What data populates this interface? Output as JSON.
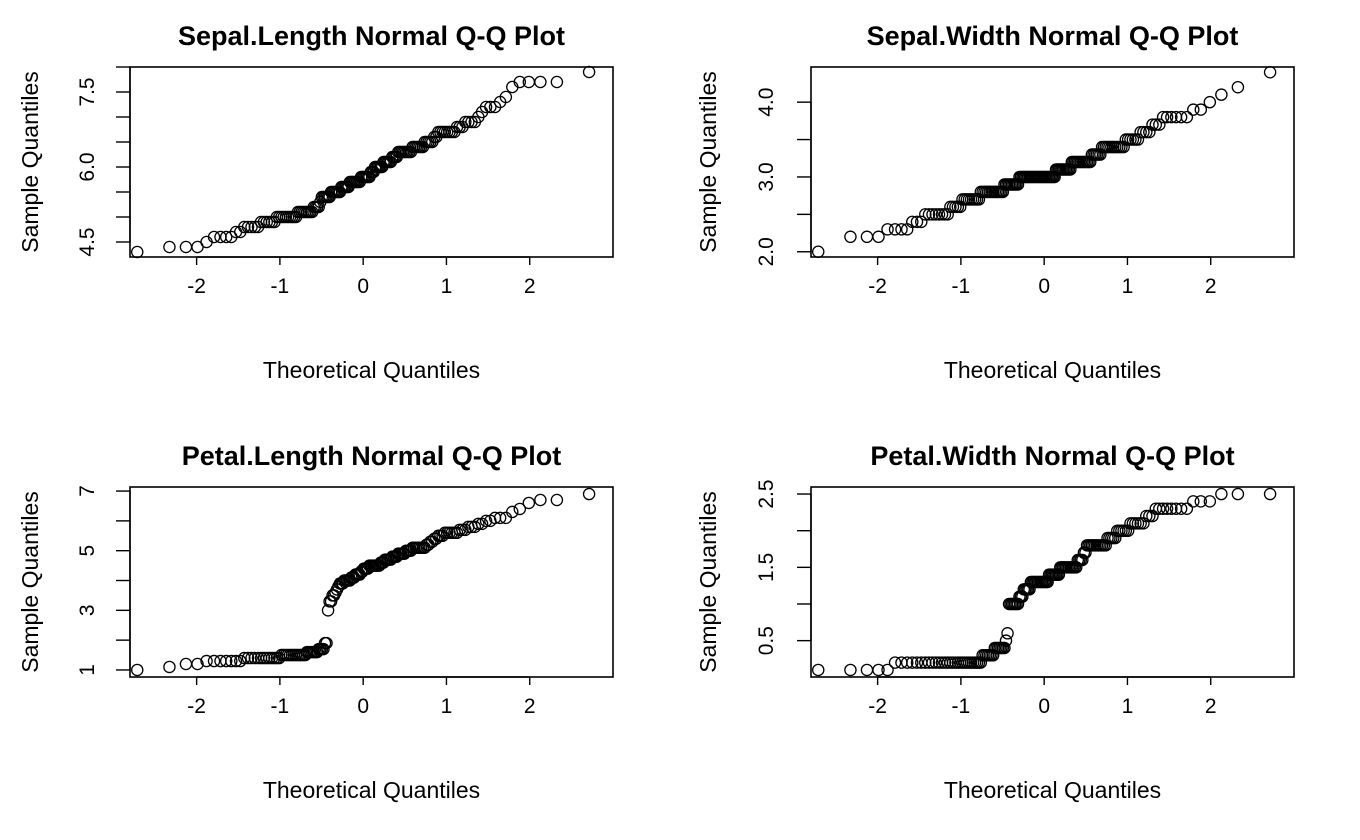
{
  "chart_data": [
    {
      "type": "scatter",
      "variable": "sepal_length",
      "title": "Sepal.Length  Normal Q-Q Plot",
      "xlabel": "Theoretical Quantiles",
      "ylabel": "Sample Quantiles",
      "xlim": [
        -2.8,
        3.0
      ],
      "ylim": [
        4.2,
        8.0
      ],
      "xticks": [
        -2,
        -1,
        0,
        1,
        2
      ],
      "xtick_labels": [
        "-2",
        "-1",
        "0",
        "1",
        "2"
      ],
      "yticks": [
        4.5,
        5.0,
        5.5,
        6.0,
        6.5,
        7.0,
        7.5,
        8.0
      ],
      "yticks_labeled": [
        4.5,
        6.0,
        7.5
      ],
      "ytick_labels": [
        "4.5",
        "6.0",
        "7.5"
      ],
      "grid": false,
      "sample_values": [
        4.3,
        4.4,
        4.4,
        4.4,
        4.5,
        4.6,
        4.6,
        4.6,
        4.6,
        4.7,
        4.7,
        4.8,
        4.8,
        4.8,
        4.8,
        4.8,
        4.9,
        4.9,
        4.9,
        4.9,
        4.9,
        4.9,
        5.0,
        5.0,
        5.0,
        5.0,
        5.0,
        5.0,
        5.0,
        5.0,
        5.0,
        5.0,
        5.1,
        5.1,
        5.1,
        5.1,
        5.1,
        5.1,
        5.1,
        5.1,
        5.1,
        5.2,
        5.2,
        5.2,
        5.2,
        5.3,
        5.4,
        5.4,
        5.4,
        5.4,
        5.4,
        5.4,
        5.5,
        5.5,
        5.5,
        5.5,
        5.5,
        5.5,
        5.5,
        5.6,
        5.6,
        5.6,
        5.6,
        5.6,
        5.6,
        5.7,
        5.7,
        5.7,
        5.7,
        5.7,
        5.7,
        5.7,
        5.7,
        5.8,
        5.8,
        5.8,
        5.8,
        5.8,
        5.8,
        5.8,
        5.9,
        5.9,
        5.9,
        6.0,
        6.0,
        6.0,
        6.0,
        6.0,
        6.0,
        6.1,
        6.1,
        6.1,
        6.1,
        6.1,
        6.1,
        6.2,
        6.2,
        6.2,
        6.2,
        6.3,
        6.3,
        6.3,
        6.3,
        6.3,
        6.3,
        6.3,
        6.3,
        6.3,
        6.4,
        6.4,
        6.4,
        6.4,
        6.4,
        6.4,
        6.4,
        6.5,
        6.5,
        6.5,
        6.5,
        6.5,
        6.6,
        6.6,
        6.7,
        6.7,
        6.7,
        6.7,
        6.7,
        6.7,
        6.7,
        6.7,
        6.8,
        6.8,
        6.8,
        6.9,
        6.9,
        6.9,
        6.9,
        7.0,
        7.1,
        7.2,
        7.2,
        7.2,
        7.3,
        7.4,
        7.6,
        7.7,
        7.7,
        7.7,
        7.7,
        7.9
      ]
    },
    {
      "type": "scatter",
      "variable": "sepal_width",
      "title": "Sepal.Width  Normal Q-Q Plot",
      "xlabel": "Theoretical Quantiles",
      "ylabel": "Sample Quantiles",
      "xlim": [
        -2.8,
        3.0
      ],
      "ylim": [
        1.93,
        4.47
      ],
      "xticks": [
        -2,
        -1,
        0,
        1,
        2
      ],
      "xtick_labels": [
        "-2",
        "-1",
        "0",
        "1",
        "2"
      ],
      "yticks": [
        2.0,
        2.5,
        3.0,
        3.5,
        4.0
      ],
      "yticks_labeled": [
        2.0,
        3.0,
        4.0
      ],
      "ytick_labels": [
        "2.0",
        "3.0",
        "4.0"
      ],
      "grid": false,
      "sample_values": [
        2.0,
        2.2,
        2.2,
        2.2,
        2.3,
        2.3,
        2.3,
        2.3,
        2.4,
        2.4,
        2.4,
        2.5,
        2.5,
        2.5,
        2.5,
        2.5,
        2.5,
        2.5,
        2.5,
        2.6,
        2.6,
        2.6,
        2.6,
        2.6,
        2.7,
        2.7,
        2.7,
        2.7,
        2.7,
        2.7,
        2.7,
        2.7,
        2.7,
        2.8,
        2.8,
        2.8,
        2.8,
        2.8,
        2.8,
        2.8,
        2.8,
        2.8,
        2.8,
        2.8,
        2.8,
        2.8,
        2.8,
        2.9,
        2.9,
        2.9,
        2.9,
        2.9,
        2.9,
        2.9,
        2.9,
        2.9,
        2.9,
        3.0,
        3.0,
        3.0,
        3.0,
        3.0,
        3.0,
        3.0,
        3.0,
        3.0,
        3.0,
        3.0,
        3.0,
        3.0,
        3.0,
        3.0,
        3.0,
        3.0,
        3.0,
        3.0,
        3.0,
        3.0,
        3.0,
        3.0,
        3.0,
        3.0,
        3.0,
        3.1,
        3.1,
        3.1,
        3.1,
        3.1,
        3.1,
        3.1,
        3.1,
        3.1,
        3.1,
        3.1,
        3.2,
        3.2,
        3.2,
        3.2,
        3.2,
        3.2,
        3.2,
        3.2,
        3.2,
        3.2,
        3.2,
        3.2,
        3.2,
        3.3,
        3.3,
        3.3,
        3.3,
        3.3,
        3.3,
        3.4,
        3.4,
        3.4,
        3.4,
        3.4,
        3.4,
        3.4,
        3.4,
        3.4,
        3.4,
        3.4,
        3.4,
        3.5,
        3.5,
        3.5,
        3.5,
        3.5,
        3.5,
        3.6,
        3.6,
        3.6,
        3.6,
        3.7,
        3.7,
        3.7,
        3.8,
        3.8,
        3.8,
        3.8,
        3.8,
        3.8,
        3.9,
        3.9,
        4.0,
        4.1,
        4.2,
        4.4
      ]
    },
    {
      "type": "scatter",
      "variable": "petal_length",
      "title": "Petal.Length  Normal Q-Q Plot",
      "xlabel": "Theoretical Quantiles",
      "ylabel": "Sample Quantiles",
      "xlim": [
        -2.8,
        3.0
      ],
      "ylim": [
        0.764,
        7.136
      ],
      "xticks": [
        -2,
        -1,
        0,
        1,
        2
      ],
      "xtick_labels": [
        "-2",
        "-1",
        "0",
        "1",
        "2"
      ],
      "yticks": [
        1,
        2,
        3,
        4,
        5,
        6,
        7
      ],
      "yticks_labeled": [
        1,
        3,
        5,
        7
      ],
      "ytick_labels": [
        "1",
        "3",
        "5",
        "7"
      ],
      "grid": false,
      "sample_values": [
        1.0,
        1.1,
        1.2,
        1.2,
        1.3,
        1.3,
        1.3,
        1.3,
        1.3,
        1.3,
        1.3,
        1.4,
        1.4,
        1.4,
        1.4,
        1.4,
        1.4,
        1.4,
        1.4,
        1.4,
        1.4,
        1.4,
        1.4,
        1.4,
        1.5,
        1.5,
        1.5,
        1.5,
        1.5,
        1.5,
        1.5,
        1.5,
        1.5,
        1.5,
        1.5,
        1.5,
        1.5,
        1.6,
        1.6,
        1.6,
        1.6,
        1.6,
        1.6,
        1.6,
        1.7,
        1.7,
        1.7,
        1.7,
        1.9,
        1.9,
        3.0,
        3.3,
        3.3,
        3.5,
        3.5,
        3.6,
        3.7,
        3.8,
        3.9,
        3.9,
        3.9,
        4.0,
        4.0,
        4.0,
        4.0,
        4.0,
        4.1,
        4.1,
        4.1,
        4.2,
        4.2,
        4.2,
        4.2,
        4.3,
        4.3,
        4.4,
        4.4,
        4.4,
        4.4,
        4.5,
        4.5,
        4.5,
        4.5,
        4.5,
        4.5,
        4.5,
        4.5,
        4.6,
        4.6,
        4.6,
        4.7,
        4.7,
        4.7,
        4.7,
        4.7,
        4.8,
        4.8,
        4.8,
        4.8,
        4.9,
        4.9,
        4.9,
        4.9,
        4.9,
        5.0,
        5.0,
        5.0,
        5.0,
        5.1,
        5.1,
        5.1,
        5.1,
        5.1,
        5.1,
        5.1,
        5.1,
        5.2,
        5.2,
        5.3,
        5.3,
        5.4,
        5.4,
        5.5,
        5.5,
        5.5,
        5.6,
        5.6,
        5.6,
        5.6,
        5.6,
        5.6,
        5.7,
        5.7,
        5.7,
        5.8,
        5.8,
        5.8,
        5.9,
        5.9,
        6.0,
        6.0,
        6.1,
        6.1,
        6.1,
        6.3,
        6.4,
        6.6,
        6.7,
        6.7,
        6.9
      ]
    },
    {
      "type": "scatter",
      "variable": "petal_width",
      "title": "Petal.Width  Normal Q-Q Plot",
      "xlabel": "Theoretical Quantiles",
      "ylabel": "Sample Quantiles",
      "xlim": [
        -2.8,
        3.0
      ],
      "ylim": [
        0.004,
        2.596
      ],
      "xticks": [
        -2,
        -1,
        0,
        1,
        2
      ],
      "xtick_labels": [
        "-2",
        "-1",
        "0",
        "1",
        "2"
      ],
      "yticks": [
        0.5,
        1.0,
        1.5,
        2.0,
        2.5
      ],
      "yticks_labeled": [
        0.5,
        1.5,
        2.5
      ],
      "ytick_labels": [
        "0.5",
        "1.5",
        "2.5"
      ],
      "grid": false,
      "sample_values": [
        0.1,
        0.1,
        0.1,
        0.1,
        0.1,
        0.2,
        0.2,
        0.2,
        0.2,
        0.2,
        0.2,
        0.2,
        0.2,
        0.2,
        0.2,
        0.2,
        0.2,
        0.2,
        0.2,
        0.2,
        0.2,
        0.2,
        0.2,
        0.2,
        0.2,
        0.2,
        0.2,
        0.2,
        0.2,
        0.2,
        0.2,
        0.2,
        0.2,
        0.2,
        0.3,
        0.3,
        0.3,
        0.3,
        0.3,
        0.3,
        0.3,
        0.4,
        0.4,
        0.4,
        0.4,
        0.4,
        0.4,
        0.4,
        0.5,
        0.6,
        1.0,
        1.0,
        1.0,
        1.0,
        1.0,
        1.0,
        1.0,
        1.1,
        1.1,
        1.1,
        1.2,
        1.2,
        1.2,
        1.2,
        1.2,
        1.3,
        1.3,
        1.3,
        1.3,
        1.3,
        1.3,
        1.3,
        1.3,
        1.3,
        1.3,
        1.3,
        1.3,
        1.3,
        1.4,
        1.4,
        1.4,
        1.4,
        1.4,
        1.4,
        1.4,
        1.4,
        1.5,
        1.5,
        1.5,
        1.5,
        1.5,
        1.5,
        1.5,
        1.5,
        1.5,
        1.5,
        1.5,
        1.5,
        1.6,
        1.6,
        1.6,
        1.6,
        1.7,
        1.7,
        1.8,
        1.8,
        1.8,
        1.8,
        1.8,
        1.8,
        1.8,
        1.8,
        1.8,
        1.8,
        1.8,
        1.8,
        1.9,
        1.9,
        1.9,
        1.9,
        1.9,
        2.0,
        2.0,
        2.0,
        2.0,
        2.0,
        2.0,
        2.1,
        2.1,
        2.1,
        2.1,
        2.1,
        2.1,
        2.2,
        2.2,
        2.2,
        2.3,
        2.3,
        2.3,
        2.3,
        2.3,
        2.3,
        2.3,
        2.3,
        2.4,
        2.4,
        2.4,
        2.5,
        2.5,
        2.5
      ]
    }
  ]
}
